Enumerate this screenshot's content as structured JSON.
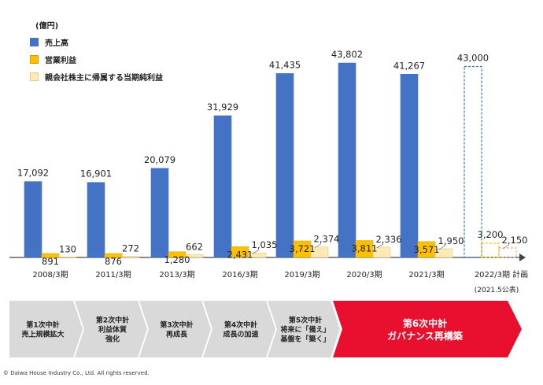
{
  "unit_label": "(億円)",
  "legend": [
    {
      "label": "売上高",
      "color": "#4472c4"
    },
    {
      "label": "営業利益",
      "color": "#ffc000"
    },
    {
      "label": "親会社株主に帰属する当期純利益",
      "color": "#fde9b4"
    }
  ],
  "chart_data": {
    "type": "bar",
    "title": "",
    "categories": [
      "2008/3期",
      "2011/3期",
      "2013/3期",
      "2016/3期",
      "2019/3期",
      "2020/3期",
      "2021/3期",
      "2022/3期 計画"
    ],
    "series": [
      {
        "name": "売上高",
        "values": [
          17092,
          16901,
          20079,
          31929,
          41435,
          43802,
          41267,
          43000
        ],
        "labels": [
          "17,092",
          "16,901",
          "20,079",
          "31,929",
          "41,435",
          "43,802",
          "41,267",
          "43,000"
        ]
      },
      {
        "name": "営業利益",
        "values": [
          891,
          876,
          1280,
          2431,
          3721,
          3811,
          3571,
          3200
        ],
        "labels": [
          "891",
          "876",
          "1,280",
          "2,431",
          "3,721",
          "3,811",
          "3,571",
          "3,200"
        ]
      },
      {
        "name": "親会社株主に帰属する当期純利益",
        "values": [
          130,
          272,
          662,
          1035,
          2374,
          2336,
          1950,
          2150
        ],
        "labels": [
          "130",
          "272",
          "662",
          "1,035",
          "2,374",
          "2,336",
          "1,950",
          "2,150"
        ]
      }
    ],
    "plan_note": "(2021.5公表)",
    "xlabel": "",
    "ylabel": "",
    "ylim": [
      0,
      46000
    ],
    "grid": false
  },
  "phases": [
    {
      "lines": [
        "第1次中計",
        "売上規模拡大"
      ],
      "highlight": false
    },
    {
      "lines": [
        "第2次中計",
        "利益体質",
        "強化"
      ],
      "highlight": false
    },
    {
      "lines": [
        "第3次中計",
        "再成長"
      ],
      "highlight": false
    },
    {
      "lines": [
        "第4次中計",
        "成長の加速"
      ],
      "highlight": false
    },
    {
      "lines": [
        "第5次中計",
        "将来に「備え」",
        "基盤を「築く」"
      ],
      "highlight": false
    },
    {
      "lines": [
        "第6次中計",
        "ガバナンス再構築"
      ],
      "highlight": true
    }
  ],
  "colors": {
    "sales": "#4472c4",
    "operating": "#ffc000",
    "net": "#fde9b4",
    "phase_gray": "#d9d9d9",
    "phase_red": "#e8102e"
  },
  "copyright": "© Daiwa House Industry Co., Ltd. All rights reserved."
}
